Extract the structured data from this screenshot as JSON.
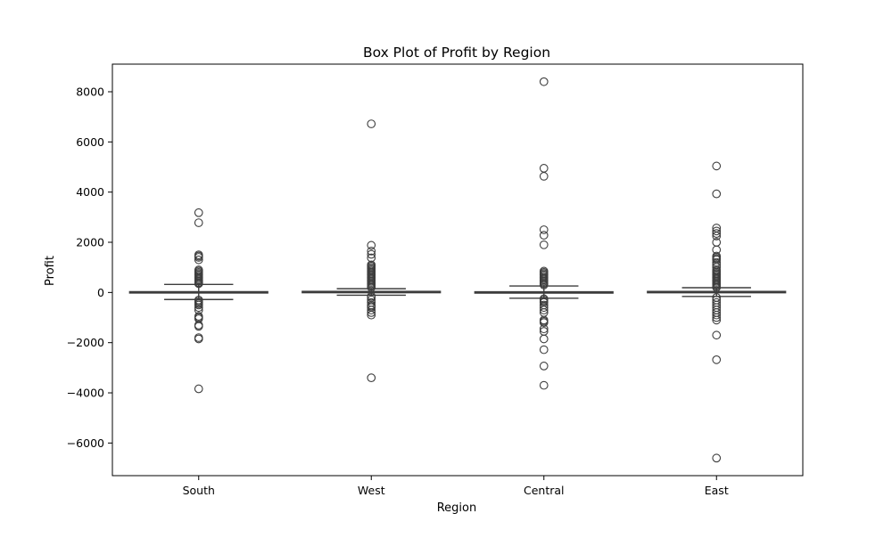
{
  "chart_data": {
    "type": "box",
    "title": "Box Plot of Profit by Region",
    "xlabel": "Region",
    "ylabel": "Profit",
    "ylim": [
      -7300,
      9100
    ],
    "yticks": [
      -6000,
      -4000,
      -2000,
      0,
      2000,
      4000,
      6000,
      8000
    ],
    "ytick_labels": [
      "−6000",
      "−4000",
      "−2000",
      "0",
      "2000",
      "4000",
      "6000",
      "8000"
    ],
    "grid": false,
    "categories": [
      "South",
      "West",
      "Central",
      "East"
    ],
    "series": [
      {
        "category": "South",
        "whisker_low": -280,
        "q1": 2,
        "median": 9,
        "q3": 32,
        "whisker_high": 320,
        "outliers": [
          3180,
          2780,
          1500,
          1450,
          1400,
          1300,
          900,
          850,
          800,
          750,
          700,
          650,
          600,
          550,
          500,
          450,
          400,
          380,
          350,
          -300,
          -350,
          -400,
          -450,
          -500,
          -600,
          -700,
          -950,
          -1000,
          -1050,
          -1300,
          -1350,
          -1800,
          -1850,
          -3840
        ]
      },
      {
        "category": "West",
        "whisker_low": -110,
        "q1": 4,
        "median": 12,
        "q3": 44,
        "whisker_high": 150,
        "outliers": [
          6720,
          1880,
          1650,
          1520,
          1380,
          1100,
          1050,
          1000,
          950,
          900,
          850,
          800,
          750,
          700,
          650,
          600,
          550,
          500,
          450,
          400,
          350,
          300,
          250,
          200,
          -150,
          -200,
          -300,
          -400,
          -500,
          -550,
          -600,
          -700,
          -800,
          -900,
          -3400
        ]
      },
      {
        "category": "Central",
        "whisker_low": -230,
        "q1": -5,
        "median": 9,
        "q3": 28,
        "whisker_high": 260,
        "outliers": [
          8400,
          4950,
          4630,
          2500,
          2280,
          1900,
          850,
          800,
          750,
          700,
          650,
          600,
          550,
          500,
          450,
          400,
          350,
          300,
          -250,
          -300,
          -350,
          -400,
          -500,
          -600,
          -700,
          -800,
          -1100,
          -1150,
          -1200,
          -1450,
          -1550,
          -1850,
          -2280,
          -2930,
          -3700
        ]
      },
      {
        "category": "East",
        "whisker_low": -160,
        "q1": 3,
        "median": 11,
        "q3": 42,
        "whisker_high": 190,
        "outliers": [
          5040,
          3930,
          2570,
          2450,
          2350,
          2250,
          2000,
          1700,
          1450,
          1400,
          1350,
          1300,
          1200,
          1100,
          1000,
          900,
          850,
          800,
          750,
          700,
          650,
          600,
          550,
          500,
          450,
          400,
          350,
          300,
          250,
          200,
          -200,
          -300,
          -400,
          -500,
          -600,
          -700,
          -800,
          -900,
          -1000,
          -1100,
          -1700,
          -2680,
          -6600
        ]
      }
    ]
  }
}
